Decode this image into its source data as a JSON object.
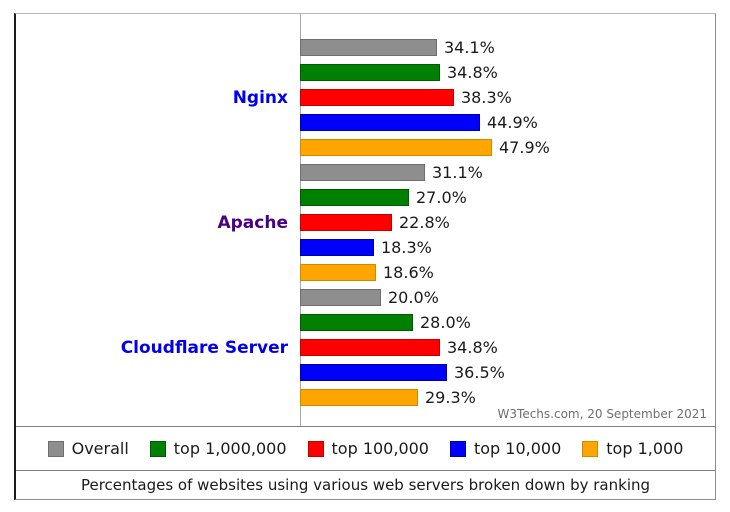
{
  "chart_data": {
    "type": "bar",
    "orientation": "horizontal",
    "categories": [
      "Nginx",
      "Apache",
      "Cloudflare Server"
    ],
    "category_label_colors": [
      "#0000EE",
      "#4B0082",
      "#0000EE"
    ],
    "series": [
      {
        "name": "Overall",
        "color": "#8E8E8E",
        "border_color": "#6E6E6E",
        "values": [
          34.1,
          31.1,
          20.0
        ]
      },
      {
        "name": "top 1,000,000",
        "color": "#008000",
        "border_color": "#015A01",
        "values": [
          34.8,
          27.0,
          28.0
        ]
      },
      {
        "name": "top 100,000",
        "color": "#FF0000",
        "border_color": "#C40000",
        "values": [
          38.3,
          22.8,
          34.8
        ]
      },
      {
        "name": "top 10,000",
        "color": "#0000FF",
        "border_color": "#0000A8",
        "values": [
          44.9,
          18.3,
          36.5
        ]
      },
      {
        "name": "top 1,000",
        "color": "#FFA500",
        "border_color": "#D18A00",
        "values": [
          47.9,
          18.6,
          29.3
        ]
      }
    ],
    "value_suffix": "%",
    "value_decimals": 1,
    "xlim": [
      0,
      52
    ],
    "grid": false,
    "legend_position": "bottom",
    "title": "",
    "caption": "Percentages of websites using various web servers broken down by ranking",
    "attribution": "W3Techs.com, 20 September 2021"
  },
  "legend": {
    "items": [
      "Overall",
      "top 1,000,000",
      "top 100,000",
      "top 10,000",
      "top 1,000"
    ]
  },
  "colors": {
    "axis_line": "#a8a8a8",
    "frame_border": "#8a8a8a",
    "text": "#1a1a1a",
    "attribution_text": "#6f6f6f"
  }
}
